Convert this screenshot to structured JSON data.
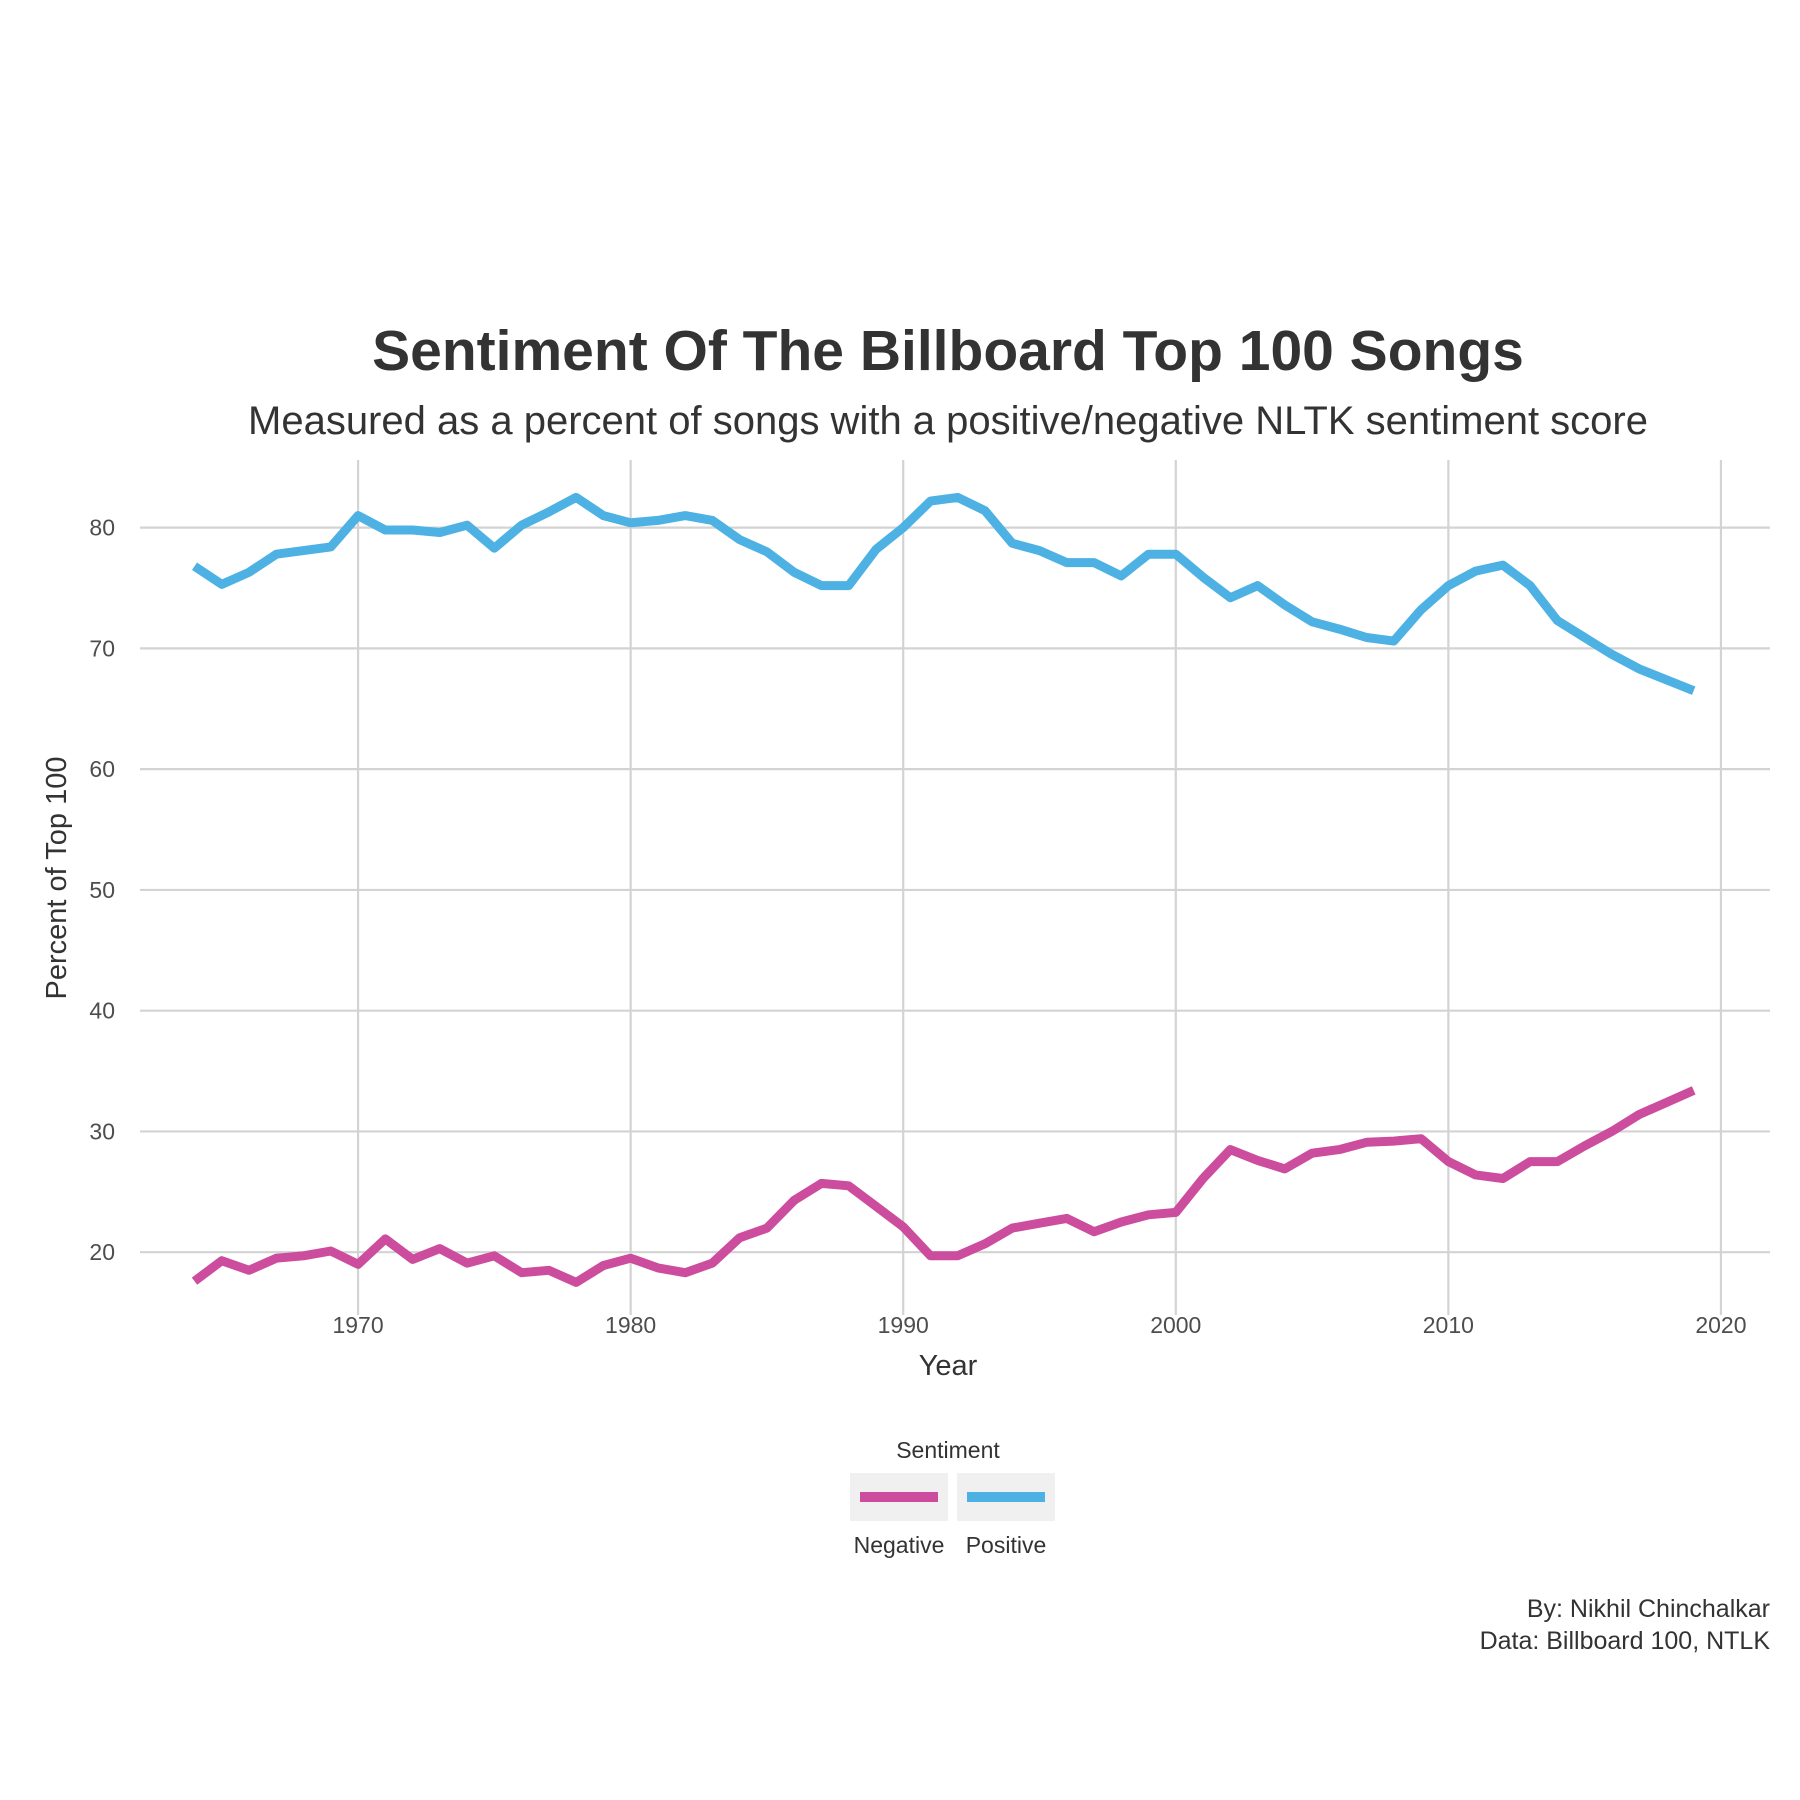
{
  "chart_data": {
    "type": "line",
    "title": "Sentiment Of The Billboard Top 100 Songs",
    "subtitle": "Measured as a percent of songs with a positive/negative NLTK sentiment score",
    "xlabel": "Year",
    "ylabel": "Percent of Top 100",
    "xlim": [
      1962,
      2021.8
    ],
    "ylim": [
      14.8,
      85.6
    ],
    "xticks": [
      1970,
      1980,
      1990,
      2000,
      2010,
      2020
    ],
    "yticks": [
      20,
      30,
      40,
      50,
      60,
      70,
      80
    ],
    "grid": true,
    "legend": {
      "title": "Sentiment",
      "position": "bottom",
      "entries": [
        "Negative",
        "Positive"
      ]
    },
    "caption": [
      "By: Nikhil Chinchalkar",
      "Data: Billboard 100, NTLK"
    ],
    "x": [
      1964,
      1965,
      1966,
      1967,
      1968,
      1969,
      1970,
      1971,
      1972,
      1973,
      1974,
      1975,
      1976,
      1977,
      1978,
      1979,
      1980,
      1981,
      1982,
      1983,
      1984,
      1985,
      1986,
      1987,
      1988,
      1989,
      1990,
      1991,
      1992,
      1993,
      1994,
      1995,
      1996,
      1997,
      1998,
      1999,
      2000,
      2001,
      2002,
      2003,
      2004,
      2005,
      2006,
      2007,
      2008,
      2009,
      2010,
      2011,
      2012,
      2013,
      2014,
      2015,
      2016,
      2017,
      2018,
      2019
    ],
    "series": [
      {
        "name": "Negative",
        "color": "#cc4c9e",
        "values": [
          17.6,
          19.3,
          18.5,
          19.5,
          19.7,
          20.1,
          19.0,
          21.1,
          19.4,
          20.3,
          19.1,
          19.7,
          18.3,
          18.5,
          17.5,
          18.9,
          19.5,
          18.7,
          18.3,
          19.1,
          21.2,
          22.0,
          24.3,
          25.7,
          25.5,
          23.8,
          22.1,
          19.7,
          19.7,
          20.7,
          22.0,
          22.4,
          22.8,
          21.7,
          22.5,
          23.1,
          23.3,
          26.1,
          28.5,
          27.6,
          26.9,
          28.2,
          28.5,
          29.1,
          29.2,
          29.4,
          27.5,
          26.4,
          26.1,
          27.5,
          27.5,
          28.8,
          30.0,
          31.4,
          32.4,
          33.4
        ]
      },
      {
        "name": "Positive",
        "color": "#4eb1e3",
        "values": [
          76.8,
          75.3,
          76.3,
          77.8,
          78.1,
          78.4,
          81.0,
          79.8,
          79.8,
          79.6,
          80.2,
          78.3,
          80.2,
          81.3,
          82.5,
          81.0,
          80.4,
          80.6,
          81.0,
          80.6,
          79.0,
          78.0,
          76.3,
          75.2,
          75.2,
          78.2,
          80.0,
          82.2,
          82.5,
          81.4,
          78.7,
          78.1,
          77.1,
          77.1,
          76.0,
          77.8,
          77.8,
          75.9,
          74.2,
          75.2,
          73.6,
          72.2,
          71.6,
          70.9,
          70.6,
          73.2,
          75.2,
          76.4,
          76.9,
          75.2,
          72.3,
          70.9,
          69.5,
          68.3,
          67.4,
          66.5
        ]
      }
    ]
  }
}
